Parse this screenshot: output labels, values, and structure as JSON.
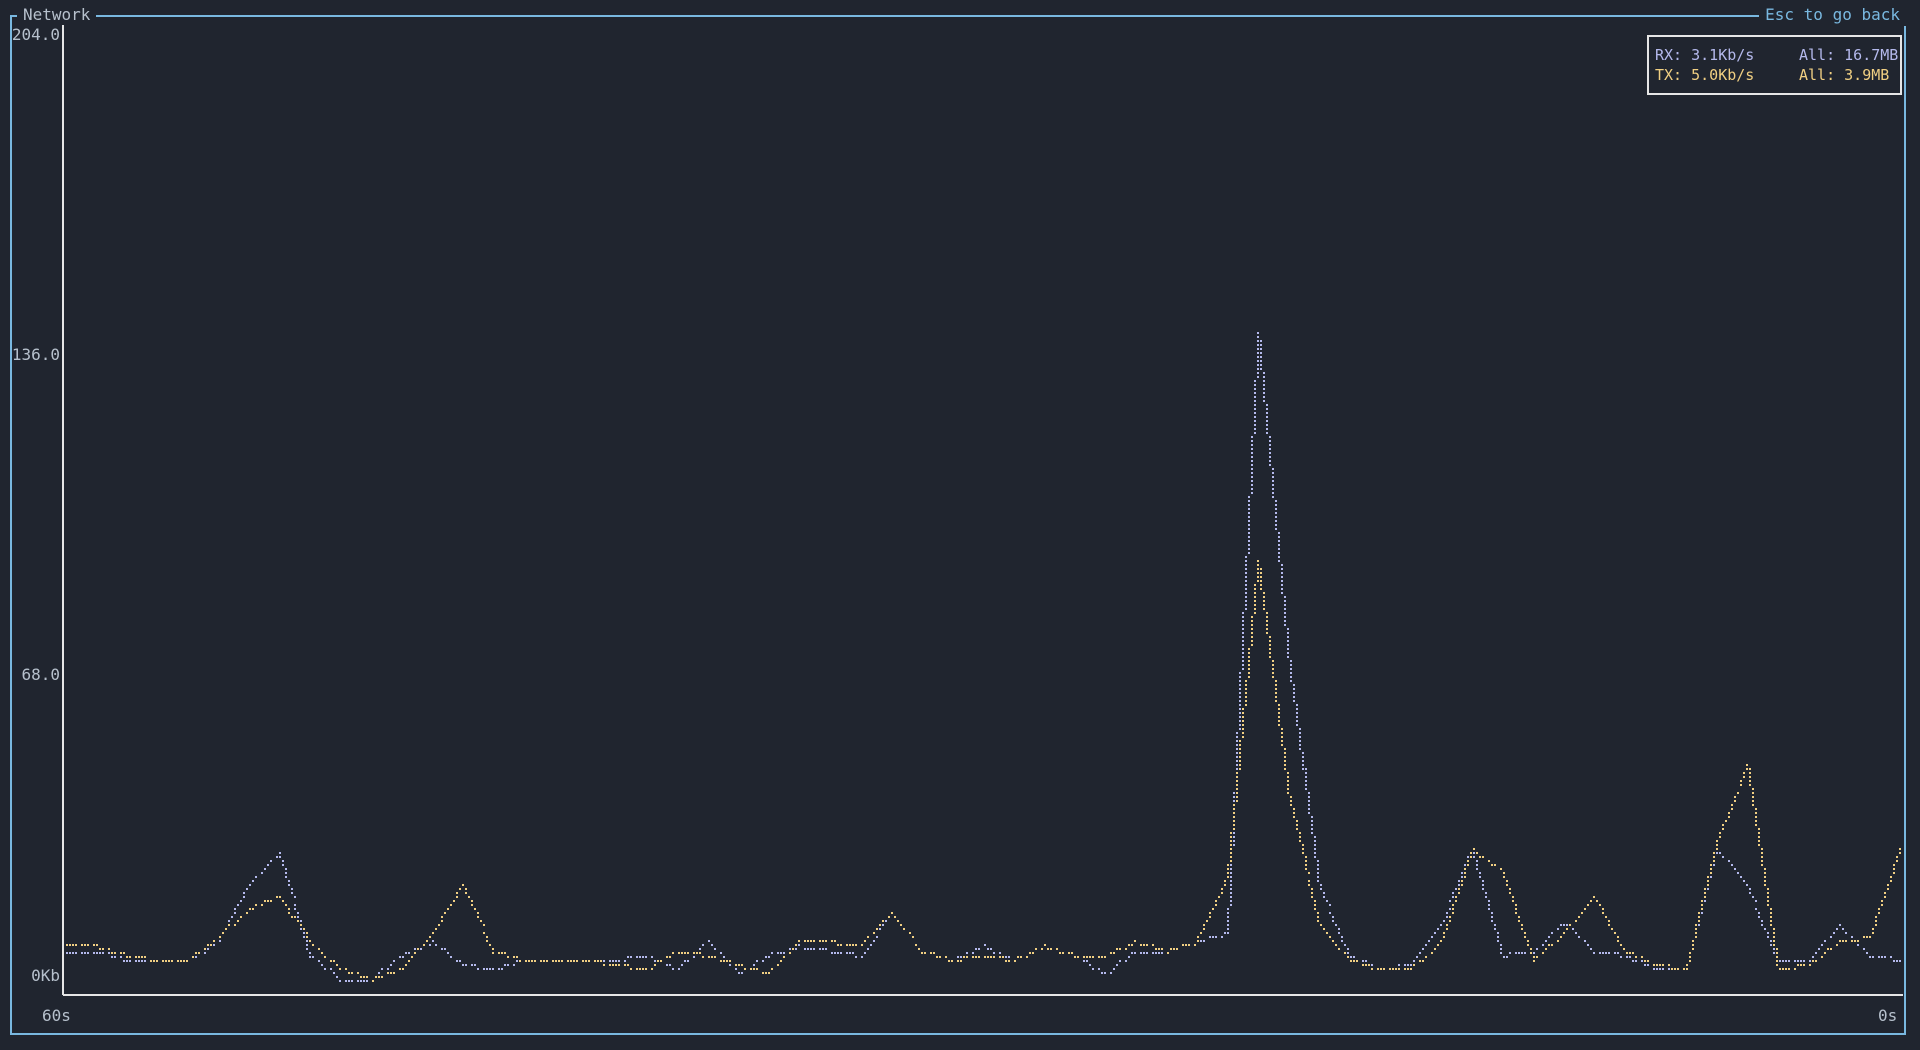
{
  "panel": {
    "title": "Network",
    "back_hint": "Esc to go back"
  },
  "legend": {
    "rx_rate": "RX: 3.1Kb/s",
    "rx_total": "All: 16.7MB",
    "tx_rate": "TX: 5.0Kb/s",
    "tx_total": "All: 3.9MB"
  },
  "colors": {
    "background": "#20252f",
    "border": "#79b8e0",
    "rx": "#b4b9ec",
    "tx": "#f0cf82",
    "axis": "#e6e6e6",
    "text": "#b6c0cc"
  },
  "chart_data": {
    "type": "line",
    "x_axis_labels": [
      "60s",
      "0s"
    ],
    "y_tick_labels": [
      "204.0",
      "136.0",
      "68.0",
      "0Kb"
    ],
    "xlim": [
      60,
      0
    ],
    "ylim": [
      0,
      204
    ],
    "series": [
      {
        "name": "RX",
        "x": [
          60,
          59,
          58,
          57,
          56,
          55,
          54,
          53,
          52,
          51,
          50,
          49,
          48,
          47,
          46,
          45,
          44,
          43,
          42,
          41,
          40,
          39,
          38,
          37,
          36,
          35,
          34,
          33,
          32,
          31,
          30,
          29,
          28,
          27,
          26,
          25,
          24,
          23,
          22,
          21,
          20,
          19,
          18,
          17,
          16,
          15,
          14,
          13,
          12,
          11,
          10,
          9,
          8,
          7,
          6,
          5,
          4,
          3,
          2,
          1,
          0
        ],
        "values": [
          6,
          6,
          4,
          4,
          4,
          8,
          20,
          27,
          5,
          0,
          0,
          5,
          8,
          3,
          2,
          4,
          4,
          4,
          4,
          5,
          2,
          8,
          1,
          5,
          7,
          6,
          5,
          14,
          6,
          4,
          7,
          4,
          7,
          5,
          1,
          6,
          6,
          8,
          10,
          140,
          70,
          20,
          5,
          2,
          3,
          12,
          28,
          5,
          6,
          12,
          6,
          5,
          2,
          2,
          28,
          20,
          4,
          4,
          12,
          5,
          4
        ]
      },
      {
        "name": "TX",
        "x": [
          60,
          59,
          58,
          57,
          56,
          55,
          54,
          53,
          52,
          51,
          50,
          49,
          48,
          47,
          46,
          45,
          44,
          43,
          42,
          41,
          40,
          39,
          38,
          37,
          36,
          35,
          34,
          33,
          32,
          31,
          30,
          29,
          28,
          27,
          26,
          25,
          24,
          23,
          22,
          21,
          20,
          19,
          18,
          17,
          16,
          15,
          14,
          13,
          12,
          11,
          10,
          9,
          8,
          7,
          6,
          5,
          4,
          3,
          2,
          1,
          0
        ],
        "values": [
          7,
          7,
          5,
          4,
          4,
          9,
          15,
          18,
          8,
          2,
          0,
          2,
          10,
          20,
          6,
          4,
          4,
          4,
          3,
          2,
          6,
          5,
          3,
          1,
          8,
          8,
          7,
          14,
          6,
          4,
          5,
          4,
          7,
          5,
          5,
          8,
          6,
          8,
          22,
          90,
          40,
          12,
          4,
          2,
          2,
          8,
          28,
          23,
          4,
          10,
          18,
          6,
          3,
          2,
          30,
          46,
          2,
          3,
          8,
          9,
          28
        ]
      }
    ]
  }
}
